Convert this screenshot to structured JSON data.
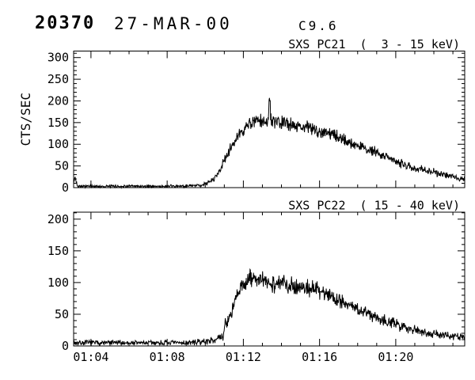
{
  "colors": {
    "ink": "#000000",
    "background": "#ffffff"
  },
  "header": {
    "event_number": "20370",
    "date": "27-MAR-00",
    "goes_class": "C9.6"
  },
  "chart_data": [
    {
      "id": "pc21",
      "type": "line",
      "title": "SXS PC21  (  3 - 15 keV)",
      "ylabel": "CTS/SEC",
      "ylim": [
        0,
        315
      ],
      "yticks": [
        {
          "value": 0,
          "label": "0"
        },
        {
          "value": 50,
          "label": "50"
        },
        {
          "value": 100,
          "label": "100"
        },
        {
          "value": 150,
          "label": "150"
        },
        {
          "value": 200,
          "label": "200"
        },
        {
          "value": 250,
          "label": "250"
        },
        {
          "value": 300,
          "label": "300"
        }
      ],
      "y_minor_step": 10,
      "xlim_minutes_after_0100": [
        3.09,
        23.62
      ],
      "xticks": [
        {
          "minute": 4,
          "label": "01:04"
        },
        {
          "minute": 8,
          "label": "01:08"
        },
        {
          "minute": 12,
          "label": "01:12"
        },
        {
          "minute": 16,
          "label": "01:16"
        },
        {
          "minute": 20,
          "label": "01:20"
        }
      ],
      "x_minor_step_minutes": 1,
      "x_labels_shown": false,
      "grid": false,
      "legend": null,
      "line_color": "#000000",
      "envelope_points_minute_cts": [
        [
          3.09,
          8
        ],
        [
          3.15,
          24
        ],
        [
          3.3,
          4
        ],
        [
          4.0,
          3
        ],
        [
          8.5,
          3
        ],
        [
          9.3,
          4
        ],
        [
          9.8,
          6
        ],
        [
          10.1,
          10
        ],
        [
          10.4,
          18
        ],
        [
          10.7,
          35
        ],
        [
          11.0,
          62
        ],
        [
          11.3,
          88
        ],
        [
          11.6,
          110
        ],
        [
          11.9,
          128
        ],
        [
          12.2,
          142
        ],
        [
          12.5,
          152
        ],
        [
          12.9,
          153
        ],
        [
          13.28,
          150
        ],
        [
          13.37,
          210
        ],
        [
          13.46,
          153
        ],
        [
          13.8,
          148
        ],
        [
          14.2,
          150
        ],
        [
          14.6,
          145
        ],
        [
          15.0,
          142
        ],
        [
          15.5,
          138
        ],
        [
          16.0,
          130
        ],
        [
          16.5,
          125
        ],
        [
          17.0,
          116
        ],
        [
          17.5,
          106
        ],
        [
          18.0,
          96
        ],
        [
          18.5,
          89
        ],
        [
          19.0,
          81
        ],
        [
          19.5,
          72
        ],
        [
          20.0,
          60
        ],
        [
          20.5,
          52
        ],
        [
          21.0,
          45
        ],
        [
          21.5,
          41
        ],
        [
          22.0,
          36
        ],
        [
          22.5,
          30
        ],
        [
          23.0,
          25
        ],
        [
          23.62,
          20
        ]
      ],
      "noise": {
        "base": 1.5,
        "sqrt_coeff": 1.4,
        "seed": 42
      },
      "sample_step_minutes": 0.02
    },
    {
      "id": "pc22",
      "type": "line",
      "title": "SXS PC22  ( 15 - 40 keV)",
      "ylabel": "",
      "ylim": [
        0,
        211
      ],
      "yticks": [
        {
          "value": 0,
          "label": "0"
        },
        {
          "value": 50,
          "label": "50"
        },
        {
          "value": 100,
          "label": "100"
        },
        {
          "value": 150,
          "label": "150"
        },
        {
          "value": 200,
          "label": "200"
        }
      ],
      "y_minor_step": 10,
      "xlim_minutes_after_0100": [
        3.09,
        23.62
      ],
      "xticks": [
        {
          "minute": 4,
          "label": "01:04"
        },
        {
          "minute": 8,
          "label": "01:08"
        },
        {
          "minute": 12,
          "label": "01:12"
        },
        {
          "minute": 16,
          "label": "01:16"
        },
        {
          "minute": 20,
          "label": "01:20"
        }
      ],
      "x_minor_step_minutes": 1,
      "x_labels_shown": true,
      "grid": false,
      "legend": null,
      "line_color": "#000000",
      "envelope_points_minute_cts": [
        [
          3.09,
          5
        ],
        [
          9.0,
          5
        ],
        [
          9.6,
          6
        ],
        [
          10.0,
          7
        ],
        [
          10.3,
          9
        ],
        [
          10.6,
          11
        ],
        [
          10.95,
          14
        ],
        [
          11.05,
          40
        ],
        [
          11.15,
          36
        ],
        [
          11.35,
          52
        ],
        [
          11.6,
          72
        ],
        [
          11.85,
          90
        ],
        [
          12.1,
          100
        ],
        [
          12.35,
          106
        ],
        [
          12.6,
          107
        ],
        [
          12.9,
          103
        ],
        [
          13.3,
          100
        ],
        [
          13.7,
          98
        ],
        [
          14.1,
          99
        ],
        [
          14.5,
          96
        ],
        [
          15.0,
          93
        ],
        [
          15.5,
          91
        ],
        [
          16.0,
          88
        ],
        [
          16.5,
          81
        ],
        [
          17.0,
          73
        ],
        [
          17.5,
          66
        ],
        [
          18.0,
          57
        ],
        [
          18.5,
          52
        ],
        [
          19.0,
          46
        ],
        [
          19.5,
          40
        ],
        [
          20.0,
          34
        ],
        [
          20.5,
          30
        ],
        [
          21.0,
          26
        ],
        [
          21.5,
          22
        ],
        [
          22.0,
          19
        ],
        [
          22.5,
          17
        ],
        [
          23.0,
          15
        ],
        [
          23.62,
          13
        ]
      ],
      "noise": {
        "base": 1.5,
        "sqrt_coeff": 1.6,
        "seed": 7
      },
      "sample_step_minutes": 0.02
    }
  ]
}
